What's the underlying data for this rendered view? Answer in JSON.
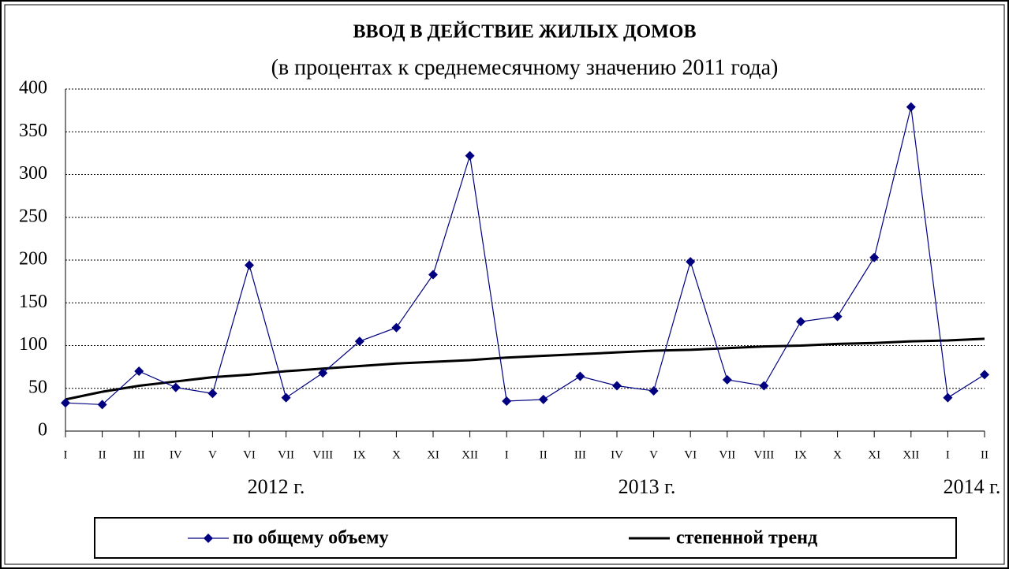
{
  "chart_data": {
    "type": "line",
    "title": "ВВОД В ДЕЙСТВИЕ ЖИЛЫХ ДОМОВ",
    "subtitle": "(в процентах  к среднемесячному  значению 2011 года)",
    "categories": [
      "I",
      "II",
      "III",
      "IV",
      "V",
      "VI",
      "VII",
      "VIII",
      "IX",
      "X",
      "XI",
      "XII",
      "I",
      "II",
      "III",
      "IV",
      "V",
      "VI",
      "VII",
      "VIII",
      "IX",
      "X",
      "XI",
      "XII",
      "I",
      "II"
    ],
    "year_labels": [
      "2012 г.",
      "2013 г.",
      "2014 г."
    ],
    "series": [
      {
        "name": "по общему объему",
        "color": "#000080",
        "marker": "diamond",
        "values": [
          33,
          31,
          70,
          51,
          44,
          194,
          39,
          68,
          105,
          121,
          183,
          322,
          35,
          37,
          64,
          53,
          47,
          198,
          60,
          53,
          128,
          134,
          203,
          379,
          39,
          66
        ]
      },
      {
        "name": "степенной тренд",
        "color": "#000000",
        "marker": "none",
        "values": [
          37,
          46,
          53,
          58,
          63,
          66,
          70,
          73,
          76,
          79,
          81,
          83,
          86,
          88,
          90,
          92,
          94,
          95,
          97,
          99,
          100,
          102,
          103,
          105,
          106,
          108
        ]
      }
    ],
    "ylim": [
      0,
      400
    ],
    "yticks": [
      0,
      50,
      100,
      150,
      200,
      250,
      300,
      350,
      400
    ],
    "grid": true
  }
}
